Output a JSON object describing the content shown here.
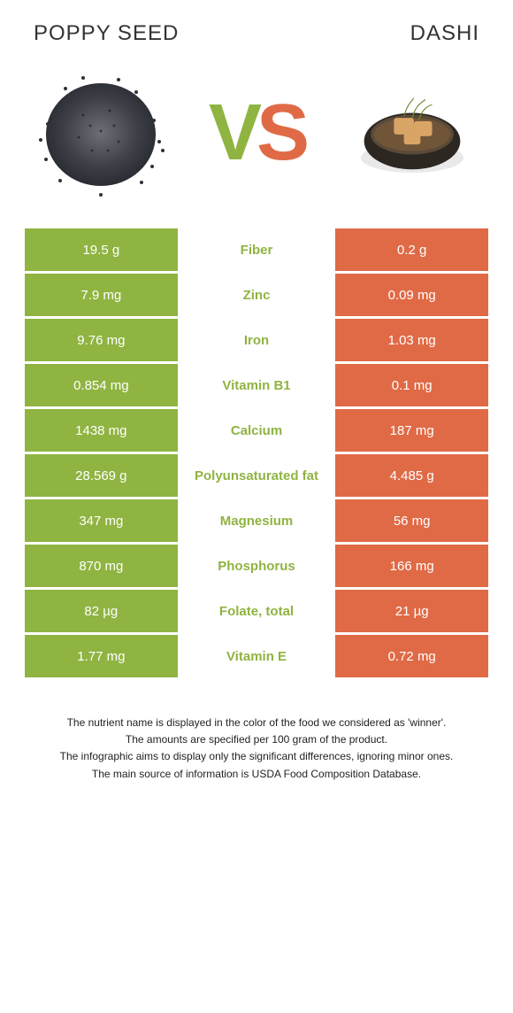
{
  "titles": {
    "left": "POPPY SEED",
    "right": "DASHI"
  },
  "vs": {
    "v": "V",
    "s": "S"
  },
  "colors": {
    "left_bg": "#8fb441",
    "right_bg": "#e06a46",
    "mid_text": "#8fb441",
    "body_bg": "#ffffff",
    "title_color": "#333333"
  },
  "rows": [
    {
      "left": "19.5 g",
      "label": "Fiber",
      "right": "0.2 g"
    },
    {
      "left": "7.9 mg",
      "label": "Zinc",
      "right": "0.09 mg"
    },
    {
      "left": "9.76 mg",
      "label": "Iron",
      "right": "1.03 mg"
    },
    {
      "left": "0.854 mg",
      "label": "Vitamin B1",
      "right": "0.1 mg"
    },
    {
      "left": "1438 mg",
      "label": "Calcium",
      "right": "187 mg"
    },
    {
      "left": "28.569 g",
      "label": "Polyunsaturated fat",
      "right": "4.485 g"
    },
    {
      "left": "347 mg",
      "label": "Magnesium",
      "right": "56 mg"
    },
    {
      "left": "870 mg",
      "label": "Phosphorus",
      "right": "166 mg"
    },
    {
      "left": "82 µg",
      "label": "Folate, total",
      "right": "21 µg"
    },
    {
      "left": "1.77 mg",
      "label": "Vitamin E",
      "right": "0.72 mg"
    }
  ],
  "notes": [
    "The nutrient name is displayed in the color of the food we considered as 'winner'.",
    "The amounts are specified per 100 gram of the product.",
    "The infographic aims to display only the significant differences, ignoring minor ones.",
    "The main source of information is USDA Food Composition Database."
  ]
}
